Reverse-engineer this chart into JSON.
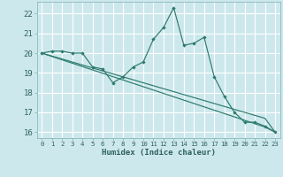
{
  "xlabel": "Humidex (Indice chaleur)",
  "background_color": "#cde8ec",
  "grid_color": "#ffffff",
  "line_color": "#2d7a6e",
  "x_values": [
    0,
    1,
    2,
    3,
    4,
    5,
    6,
    7,
    8,
    9,
    10,
    11,
    12,
    13,
    14,
    15,
    16,
    17,
    18,
    19,
    20,
    21,
    22,
    23
  ],
  "y_main": [
    20.0,
    20.1,
    20.1,
    20.0,
    20.0,
    19.3,
    19.2,
    18.5,
    18.8,
    19.3,
    19.55,
    20.7,
    21.3,
    22.3,
    20.4,
    20.5,
    20.8,
    18.8,
    17.8,
    17.0,
    16.5,
    16.5,
    16.3,
    16.0
  ],
  "y_linear1": [
    20.0,
    19.85,
    19.7,
    19.55,
    19.4,
    19.25,
    19.1,
    18.95,
    18.8,
    18.65,
    18.5,
    18.35,
    18.2,
    18.05,
    17.9,
    17.75,
    17.6,
    17.45,
    17.3,
    17.15,
    17.0,
    16.85,
    16.7,
    16.0
  ],
  "y_linear2": [
    20.0,
    19.83,
    19.66,
    19.49,
    19.32,
    19.15,
    18.98,
    18.81,
    18.64,
    18.47,
    18.3,
    18.13,
    17.96,
    17.79,
    17.62,
    17.45,
    17.28,
    17.11,
    16.94,
    16.77,
    16.6,
    16.43,
    16.26,
    16.0
  ],
  "ylim": [
    15.7,
    22.6
  ],
  "xlim": [
    -0.5,
    23.5
  ],
  "yticks": [
    16,
    17,
    18,
    19,
    20,
    21,
    22
  ],
  "xticks": [
    0,
    1,
    2,
    3,
    4,
    5,
    6,
    7,
    8,
    9,
    10,
    11,
    12,
    13,
    14,
    15,
    16,
    17,
    18,
    19,
    20,
    21,
    22,
    23
  ],
  "xlabel_fontsize": 6.5,
  "ytick_fontsize": 6.5,
  "xtick_fontsize": 5.2
}
